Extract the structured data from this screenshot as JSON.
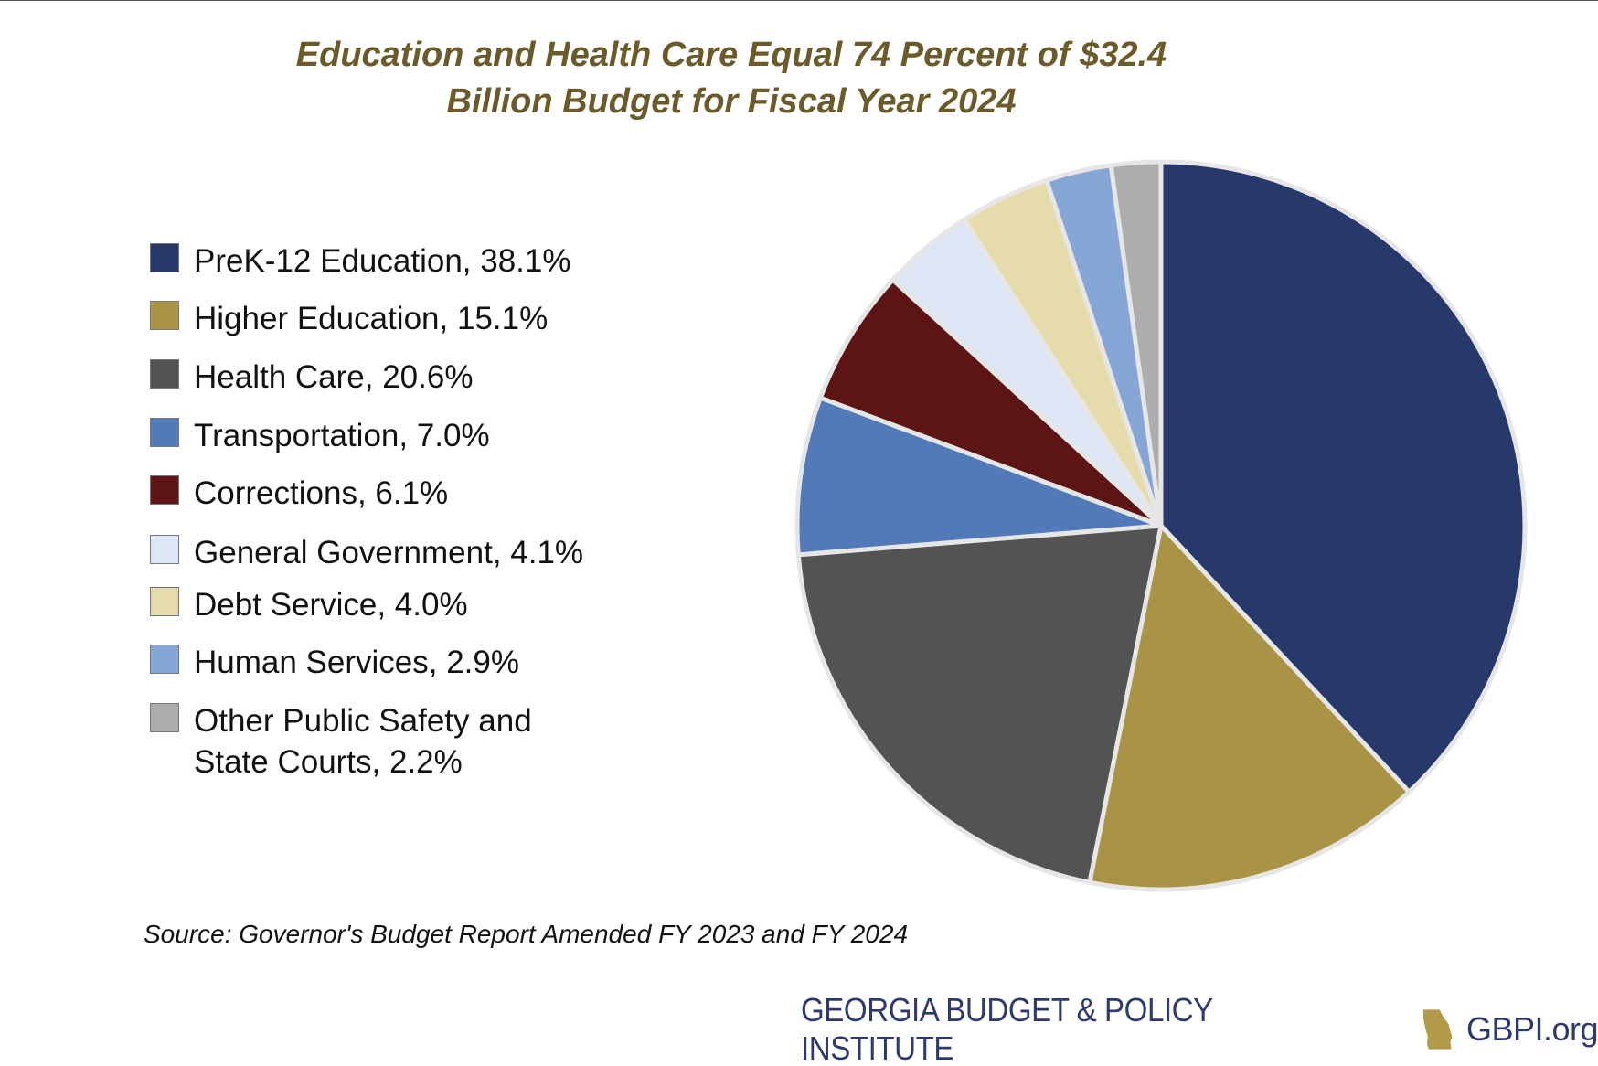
{
  "colors": {
    "title": "#6b5a2a",
    "footer_text": "#2e3a6e",
    "georgia_icon": "#b39a4a",
    "slice_border": "#e6e6e6"
  },
  "chart_data": {
    "type": "pie",
    "title": "Education and Health Care Equal 74 Percent of $32.4\nBillion Budget for Fiscal Year 2024",
    "start_angle_deg": 0,
    "direction": "clockwise",
    "legend_position": "left",
    "slices": [
      {
        "label": "PreK-12 Education, 38.1%",
        "name": "PreK-12 Education",
        "value": 38.1,
        "color": "#27386b"
      },
      {
        "label": "Higher Education, 15.1%",
        "name": "Higher Education",
        "value": 15.1,
        "color": "#a89444"
      },
      {
        "label": "Health Care, 20.6%",
        "name": "Health Care",
        "value": 20.6,
        "color": "#525453"
      },
      {
        "label": "Transportation, 7.0%",
        "name": "Transportation",
        "value": 7.0,
        "color": "#5279b8"
      },
      {
        "label": "Corrections, 6.1%",
        "name": "Corrections",
        "value": 6.1,
        "color": "#5c1414"
      },
      {
        "label": "General Government, 4.1%",
        "name": "General Government",
        "value": 4.1,
        "color": "#dce6f4"
      },
      {
        "label": "Debt Service, 4.0%",
        "name": "Debt Service",
        "value": 4.0,
        "color": "#e6dcab"
      },
      {
        "label": "Human Services, 2.9%",
        "name": "Human Services",
        "value": 2.9,
        "color": "#86a6d6"
      },
      {
        "label": "Other Public Safety and\nState Courts, 2.2%",
        "name": "Other Public Safety and State Courts",
        "value": 2.2,
        "color": "#adadad"
      }
    ]
  },
  "source": "Source: Governor's Budget Report Amended FY 2023 and FY 2024",
  "footer": {
    "org": "GEORGIA BUDGET & POLICY INSTITUTE",
    "site": "GBPI.org",
    "icon": "georgia-state-icon"
  }
}
